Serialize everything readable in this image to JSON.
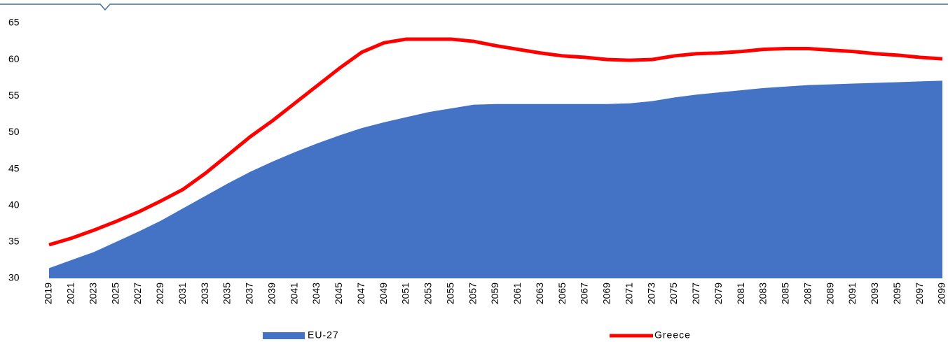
{
  "chart_data": {
    "type": "area_line",
    "x": [
      2019,
      2021,
      2023,
      2025,
      2027,
      2029,
      2031,
      2033,
      2035,
      2037,
      2039,
      2041,
      2043,
      2045,
      2047,
      2049,
      2051,
      2053,
      2055,
      2057,
      2059,
      2061,
      2063,
      2065,
      2067,
      2069,
      2071,
      2073,
      2075,
      2077,
      2079,
      2081,
      2083,
      2085,
      2087,
      2089,
      2091,
      2093,
      2095,
      2097,
      2099
    ],
    "series": [
      {
        "name": "EU-27",
        "color": "#4472c4",
        "kind": "area",
        "values": [
          31.4,
          32.5,
          33.6,
          35.0,
          36.4,
          37.9,
          39.6,
          41.3,
          43.0,
          44.6,
          46.0,
          47.3,
          48.5,
          49.6,
          50.6,
          51.4,
          52.1,
          52.8,
          53.3,
          53.8,
          53.9,
          53.9,
          53.9,
          53.9,
          53.9,
          53.9,
          54.0,
          54.3,
          54.8,
          55.2,
          55.5,
          55.8,
          56.1,
          56.3,
          56.5,
          56.6,
          56.7,
          56.8,
          56.9,
          57.0,
          57.1
        ]
      },
      {
        "name": "Greece",
        "color": "#ff0000",
        "kind": "line",
        "values": [
          34.6,
          35.5,
          36.6,
          37.8,
          39.1,
          40.6,
          42.2,
          44.4,
          46.9,
          49.4,
          51.6,
          54.0,
          56.4,
          58.8,
          61.0,
          62.3,
          62.8,
          62.8,
          62.8,
          62.5,
          61.9,
          61.4,
          60.9,
          60.5,
          60.3,
          60.0,
          59.9,
          60.0,
          60.5,
          60.8,
          60.9,
          61.1,
          61.4,
          61.5,
          61.5,
          61.3,
          61.1,
          60.8,
          60.6,
          60.3,
          60.1
        ]
      }
    ],
    "xlim": [
      2019,
      2099
    ],
    "xticks": [
      2019,
      2021,
      2023,
      2025,
      2027,
      2029,
      2031,
      2033,
      2035,
      2037,
      2039,
      2041,
      2043,
      2045,
      2047,
      2049,
      2051,
      2053,
      2055,
      2057,
      2059,
      2061,
      2063,
      2065,
      2067,
      2069,
      2071,
      2073,
      2075,
      2077,
      2079,
      2081,
      2083,
      2085,
      2087,
      2089,
      2091,
      2093,
      2095,
      2097,
      2099
    ],
    "ylim": [
      30,
      65
    ],
    "yticks": [
      30,
      35,
      40,
      45,
      50,
      55,
      60,
      65
    ],
    "legend": "bottom"
  }
}
